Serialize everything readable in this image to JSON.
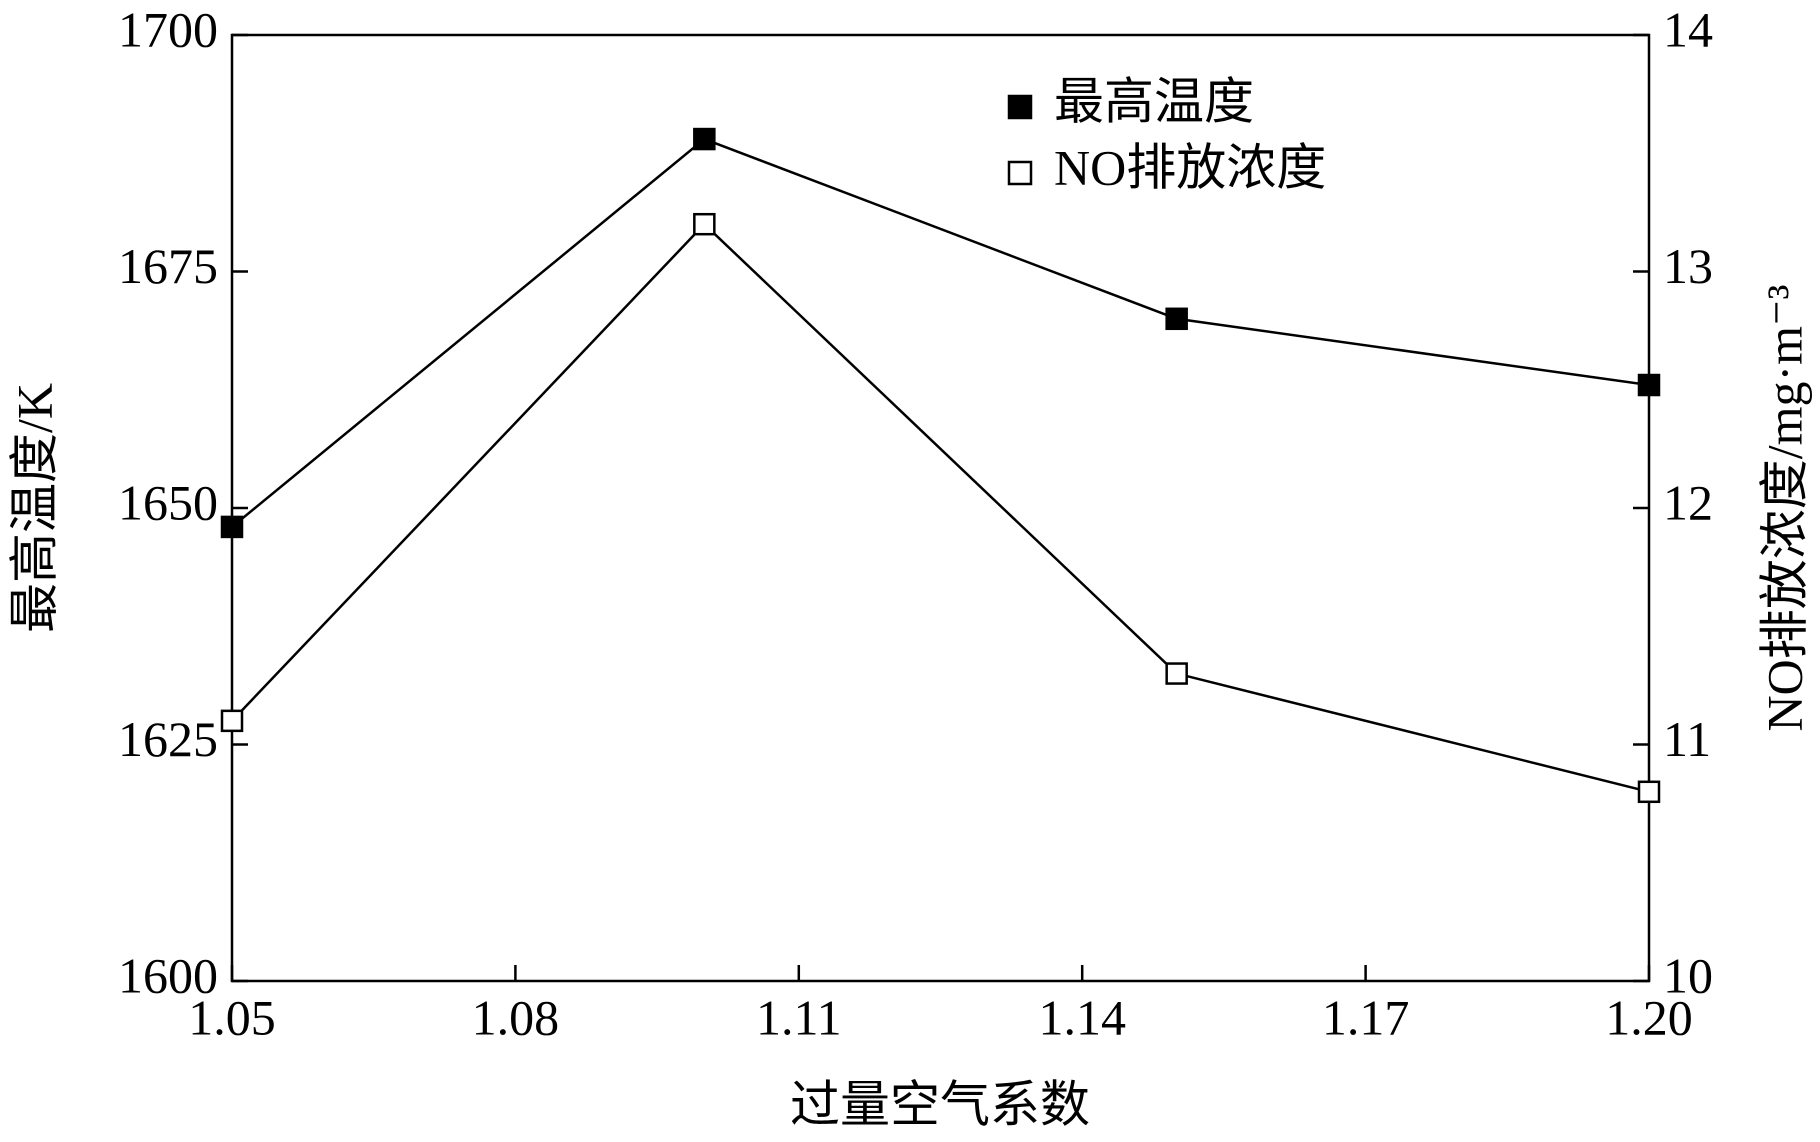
{
  "chart_data": {
    "type": "line",
    "x_label": "过量空气系数",
    "y_label": "最高温度/K",
    "y2_label": "NO排放浓度/mg·m⁻³",
    "x": [
      1.05,
      1.1,
      1.15,
      1.2
    ],
    "series": [
      {
        "name": "最高温度",
        "color": "#000000",
        "marker": "filled-square",
        "values": [
          1648,
          1689,
          1670,
          1663
        ]
      },
      {
        "name": "NO排放浓度",
        "color": "#000000",
        "marker": "open-square",
        "axis": "y2",
        "values": [
          11.1,
          13.2,
          11.3,
          10.8
        ]
      }
    ],
    "xlim": [
      1.05,
      1.2
    ],
    "xticks": [
      1.05,
      1.08,
      1.11,
      1.14,
      1.17,
      {
        "value": 1.2,
        "label": "1.20"
      }
    ],
    "ylim": [
      1600,
      1700
    ],
    "yticks": [
      1600,
      1625,
      1650,
      1675,
      1700
    ],
    "y2lim": [
      10,
      14
    ],
    "y2ticks": [
      10,
      11,
      12,
      13,
      14
    ],
    "legend": "top-right"
  }
}
